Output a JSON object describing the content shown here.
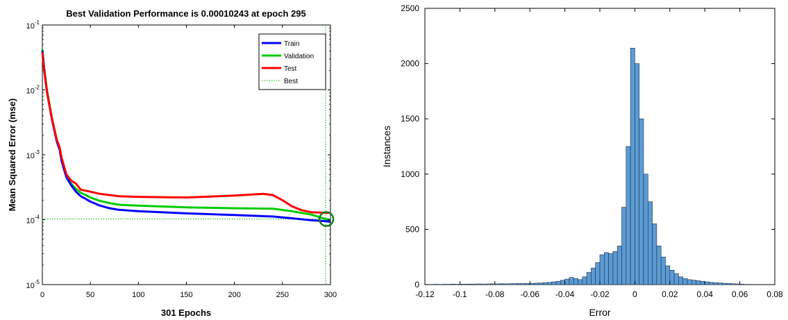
{
  "chart_data": [
    {
      "type": "line",
      "title": "Best Validation Performance is 0.00010243 at epoch 295",
      "xlabel": "301 Epochs",
      "ylabel": "Mean Squared Error  (mse)",
      "yscale": "log",
      "xlim": [
        0,
        300
      ],
      "ylim": [
        1e-05,
        0.1
      ],
      "x_ticks": [
        "0",
        "50",
        "100",
        "150",
        "200",
        "250",
        "300"
      ],
      "y_ticks": [
        {
          "base": "10",
          "exp": "-5",
          "value": 1e-05
        },
        {
          "base": "10",
          "exp": "-4",
          "value": 0.0001
        },
        {
          "base": "10",
          "exp": "-3",
          "value": 0.001
        },
        {
          "base": "10",
          "exp": "-2",
          "value": 0.01
        },
        {
          "base": "10",
          "exp": "-1",
          "value": 0.1
        }
      ],
      "legend_position": "top-right",
      "series": [
        {
          "name": "Train",
          "color": "#0000ff",
          "x": [
            0,
            2,
            5,
            10,
            15,
            18,
            20,
            25,
            30,
            35,
            40,
            45,
            50,
            60,
            70,
            80,
            100,
            150,
            200,
            240,
            260,
            280,
            295,
            300
          ],
          "y": [
            0.04,
            0.02,
            0.009,
            0.0035,
            0.0016,
            0.0012,
            0.0008,
            0.00045,
            0.00034,
            0.00027,
            0.00023,
            0.00021,
            0.00019,
            0.000165,
            0.00015,
            0.000142,
            0.000135,
            0.000125,
            0.000118,
            0.000112,
            0.000105,
            9.8e-05,
            9.5e-05,
            9.3e-05
          ]
        },
        {
          "name": "Validation",
          "color": "#00cc00",
          "x": [
            0,
            2,
            5,
            10,
            15,
            18,
            20,
            25,
            30,
            35,
            40,
            45,
            50,
            60,
            70,
            80,
            100,
            150,
            200,
            240,
            260,
            280,
            295,
            300
          ],
          "y": [
            0.042,
            0.021,
            0.0095,
            0.0037,
            0.0017,
            0.00125,
            0.00085,
            0.00048,
            0.00036,
            0.0003,
            0.00026,
            0.00024,
            0.00022,
            0.000195,
            0.00018,
            0.00017,
            0.000165,
            0.000155,
            0.00015,
            0.000148,
            0.000135,
            0.00012,
            0.000102,
            0.0001
          ]
        },
        {
          "name": "Test",
          "color": "#ff0000",
          "x": [
            0,
            2,
            5,
            10,
            15,
            18,
            20,
            25,
            30,
            35,
            37,
            40,
            45,
            50,
            60,
            70,
            80,
            100,
            150,
            200,
            230,
            240,
            250,
            260,
            270,
            280,
            295,
            300
          ],
          "y": [
            0.038,
            0.019,
            0.009,
            0.0036,
            0.0017,
            0.0013,
            0.0009,
            0.0005,
            0.0004,
            0.00036,
            0.00033,
            0.00029,
            0.00028,
            0.00027,
            0.00025,
            0.00024,
            0.00023,
            0.000225,
            0.00022,
            0.000235,
            0.00025,
            0.00024,
            0.0002,
            0.00016,
            0.00014,
            0.00013,
            0.000128,
            0.000127
          ]
        }
      ],
      "best": {
        "name": "Best",
        "color": "#00aa00",
        "epoch": 295,
        "value": 0.00010243
      }
    },
    {
      "type": "bar",
      "xlabel": "Error",
      "ylabel": "Instances",
      "xlim": [
        -0.12,
        0.08
      ],
      "ylim": [
        0,
        2500
      ],
      "x_ticks": [
        "-0.12",
        "-0.1",
        "-0.08",
        "-0.06",
        "-0.04",
        "-0.02",
        "0",
        "0.02",
        "0.04",
        "0.06",
        "0.08"
      ],
      "y_ticks": [
        "0",
        "500",
        "1000",
        "1500",
        "2000",
        "2500"
      ],
      "bar_color": "#5b9bd5",
      "bin_width": 0.0025,
      "bin_centers": [
        -0.11875,
        -0.11625,
        -0.11375,
        -0.11125,
        -0.10875,
        -0.10625,
        -0.10375,
        -0.10125,
        -0.09875,
        -0.09625,
        -0.09375,
        -0.09125,
        -0.08875,
        -0.08625,
        -0.08375,
        -0.08125,
        -0.07875,
        -0.07625,
        -0.07375,
        -0.07125,
        -0.06875,
        -0.06625,
        -0.06375,
        -0.06125,
        -0.05875,
        -0.05625,
        -0.05375,
        -0.05125,
        -0.04875,
        -0.04625,
        -0.04375,
        -0.04125,
        -0.03875,
        -0.03625,
        -0.03375,
        -0.03125,
        -0.02875,
        -0.02625,
        -0.02375,
        -0.02125,
        -0.01875,
        -0.01625,
        -0.01375,
        -0.01125,
        -0.00875,
        -0.00625,
        -0.00375,
        -0.00125,
        0.00125,
        0.00375,
        0.00625,
        0.00875,
        0.01125,
        0.01375,
        0.01625,
        0.01875,
        0.02125,
        0.02375,
        0.02625,
        0.02875,
        0.03125,
        0.03375,
        0.03625,
        0.03875,
        0.04125,
        0.04375,
        0.04625,
        0.04875,
        0.05125,
        0.05375,
        0.05625,
        0.05875,
        0.06125
      ],
      "counts": [
        2,
        2,
        3,
        2,
        3,
        3,
        4,
        3,
        4,
        4,
        5,
        5,
        6,
        5,
        6,
        7,
        6,
        8,
        7,
        8,
        9,
        10,
        10,
        11,
        12,
        13,
        15,
        17,
        20,
        25,
        30,
        40,
        50,
        65,
        55,
        45,
        70,
        110,
        150,
        200,
        270,
        290,
        280,
        300,
        350,
        700,
        1250,
        2140,
        2000,
        1500,
        1000,
        750,
        550,
        350,
        250,
        170,
        130,
        100,
        70,
        55,
        45,
        40,
        35,
        30,
        25,
        20,
        17,
        15,
        12,
        10,
        8,
        6,
        4
      ]
    }
  ]
}
